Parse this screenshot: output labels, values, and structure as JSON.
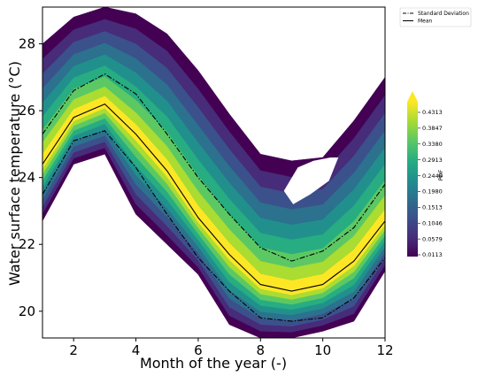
{
  "chart_data": {
    "type": "contour",
    "xlabel": "Month of the year (-)",
    "ylabel": "Water surface temperature (°C)",
    "xlim": [
      1,
      12
    ],
    "ylim": [
      19.2,
      29.1
    ],
    "x_ticks": [
      2,
      4,
      6,
      8,
      10,
      12
    ],
    "y_ticks": [
      20,
      22,
      24,
      26,
      28
    ],
    "months": [
      1,
      2,
      3,
      4,
      5,
      6,
      7,
      8,
      9,
      10,
      11,
      12
    ],
    "series": [
      {
        "name": "Mean",
        "style": "solid",
        "values": [
          24.4,
          25.8,
          26.2,
          25.3,
          24.2,
          22.8,
          21.7,
          20.8,
          20.6,
          20.8,
          21.5,
          22.7
        ]
      },
      {
        "name": "Standard Deviation",
        "style": "dashdot",
        "bound": "upper",
        "values": [
          25.3,
          26.6,
          27.1,
          26.5,
          25.3,
          24.0,
          22.9,
          21.9,
          21.5,
          21.8,
          22.5,
          23.8
        ]
      },
      {
        "name": "Standard Deviation",
        "style": "dashdot",
        "bound": "lower",
        "values": [
          23.5,
          25.1,
          25.4,
          24.3,
          22.9,
          21.6,
          20.6,
          19.8,
          19.7,
          19.8,
          20.4,
          21.6
        ]
      }
    ],
    "density_envelope": {
      "upper": [
        28.0,
        28.8,
        29.1,
        28.9,
        28.3,
        27.2,
        25.9,
        24.7,
        24.5,
        24.6,
        25.7,
        27.0
      ],
      "lower": [
        22.7,
        24.4,
        24.7,
        22.9,
        22.0,
        21.1,
        19.6,
        19.2,
        19.2,
        19.4,
        19.7,
        21.2
      ]
    },
    "colorbar": {
      "label": "PDF",
      "ticks": [
        "0.4313",
        "0.3847",
        "0.3380",
        "0.2913",
        "0.2446",
        "0.1980",
        "0.1513",
        "0.1046",
        "0.0579",
        "0.0113"
      ],
      "colormap": "viridis"
    },
    "legend": {
      "position": "top-right",
      "entries": [
        "Standard Deviation",
        "Mean"
      ]
    }
  }
}
